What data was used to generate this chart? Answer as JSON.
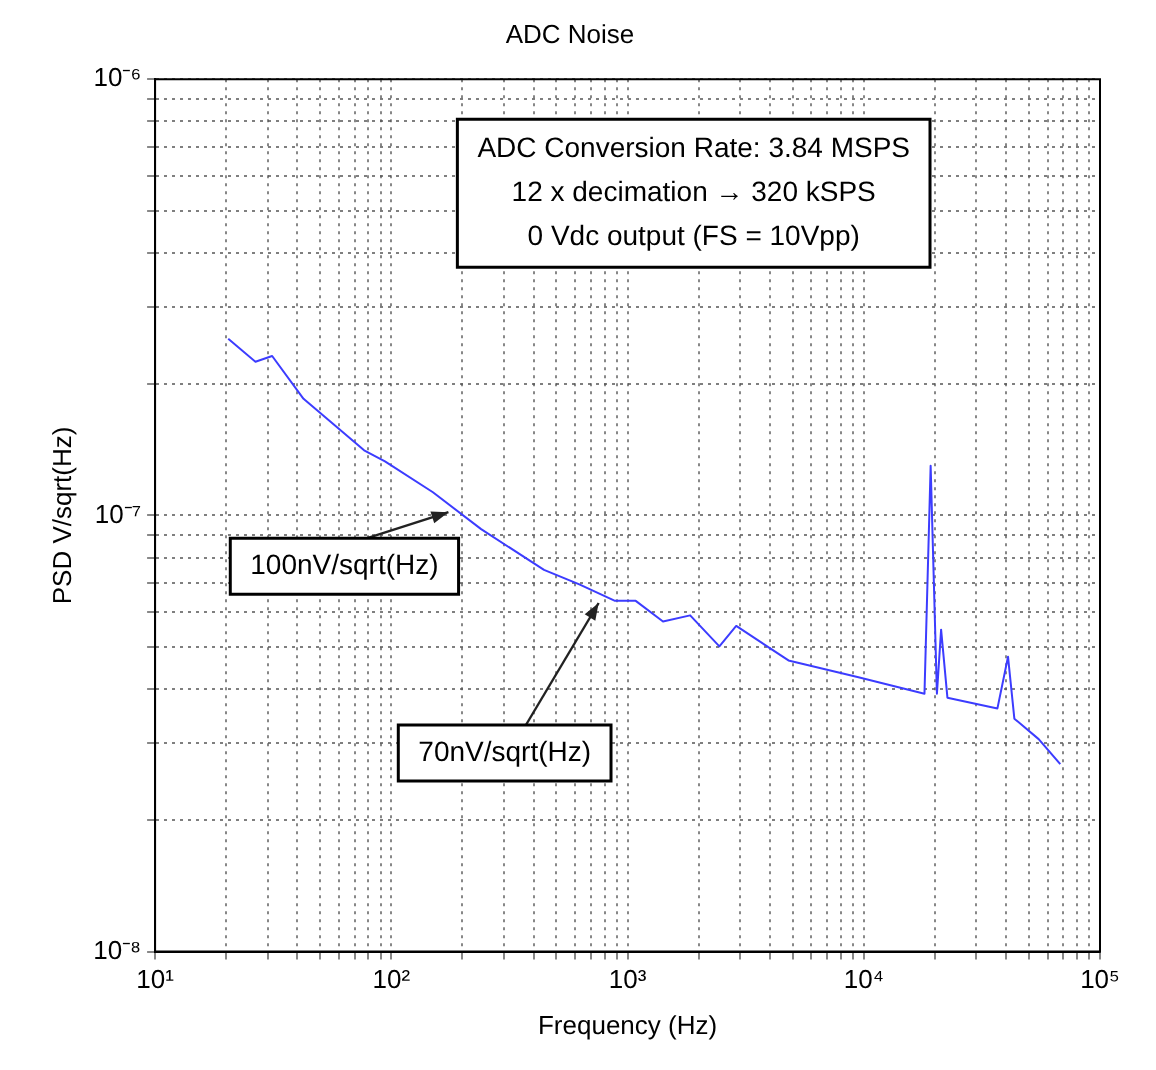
{
  "chart_data": {
    "type": "line",
    "title": "ADC Noise",
    "xlabel": "Frequency (Hz)",
    "ylabel": "PSD V/sqrt(Hz)",
    "log": "xy",
    "grid": true,
    "legend": false,
    "marker": "none",
    "line_style": "solid",
    "xlim": [
      10,
      100000
    ],
    "ylim": [
      1e-08,
      1e-06
    ],
    "xticks": [
      {
        "value": 10,
        "label": "10¹"
      },
      {
        "value": 20,
        "label": null
      },
      {
        "value": 30,
        "label": null
      },
      {
        "value": 40,
        "label": null
      },
      {
        "value": 50,
        "label": null
      },
      {
        "value": 60,
        "label": null
      },
      {
        "value": 70,
        "label": null
      },
      {
        "value": 80,
        "label": null
      },
      {
        "value": 90,
        "label": null
      },
      {
        "value": 100,
        "label": "10²"
      },
      {
        "value": 200,
        "label": null
      },
      {
        "value": 300,
        "label": null
      },
      {
        "value": 400,
        "label": null
      },
      {
        "value": 500,
        "label": null
      },
      {
        "value": 600,
        "label": null
      },
      {
        "value": 700,
        "label": null
      },
      {
        "value": 800,
        "label": null
      },
      {
        "value": 900,
        "label": null
      },
      {
        "value": 1000,
        "label": "10³"
      },
      {
        "value": 2000,
        "label": null
      },
      {
        "value": 3000,
        "label": null
      },
      {
        "value": 4000,
        "label": null
      },
      {
        "value": 5000,
        "label": null
      },
      {
        "value": 6000,
        "label": null
      },
      {
        "value": 7000,
        "label": null
      },
      {
        "value": 8000,
        "label": null
      },
      {
        "value": 9000,
        "label": null
      },
      {
        "value": 10000,
        "label": "10⁴"
      },
      {
        "value": 20000,
        "label": null
      },
      {
        "value": 30000,
        "label": null
      },
      {
        "value": 40000,
        "label": null
      },
      {
        "value": 50000,
        "label": null
      },
      {
        "value": 60000,
        "label": null
      },
      {
        "value": 70000,
        "label": null
      },
      {
        "value": 80000,
        "label": null
      },
      {
        "value": 90000,
        "label": null
      },
      {
        "value": 100000,
        "label": "10⁵"
      }
    ],
    "yticks": [
      {
        "value": 1e-08,
        "label": "10⁻⁸"
      },
      {
        "value": 2e-08,
        "label": null
      },
      {
        "value": 3e-08,
        "label": null
      },
      {
        "value": 4e-08,
        "label": null
      },
      {
        "value": 5e-08,
        "label": null
      },
      {
        "value": 6e-08,
        "label": null
      },
      {
        "value": 7e-08,
        "label": null
      },
      {
        "value": 8e-08,
        "label": null
      },
      {
        "value": 9e-08,
        "label": null
      },
      {
        "value": 1e-07,
        "label": "10⁻⁷"
      },
      {
        "value": 2e-07,
        "label": null
      },
      {
        "value": 3e-07,
        "label": null
      },
      {
        "value": 4e-07,
        "label": null
      },
      {
        "value": 5e-07,
        "label": null
      },
      {
        "value": 6e-07,
        "label": null
      },
      {
        "value": 7e-07,
        "label": null
      },
      {
        "value": 8e-07,
        "label": null
      },
      {
        "value": 9e-07,
        "label": null
      },
      {
        "value": 1e-06,
        "label": "10⁻⁶"
      }
    ],
    "series": [
      {
        "color": "#3c3cff",
        "x": [
          20.4,
          26.6,
          31.3,
          42.5,
          76.7,
          94,
          150,
          240,
          443,
          625,
          885,
          1083,
          1413,
          1841,
          2448,
          2884,
          4800,
          9400,
          18070,
          19190,
          20400,
          21250,
          22600,
          36800,
          40800,
          43400,
          55000,
          67900
        ],
        "values": [
          2.54e-07,
          2.25e-07,
          2.32e-07,
          1.85e-07,
          1.41e-07,
          1.33e-07,
          1.13e-07,
          9.3e-08,
          7.5e-08,
          6.95e-08,
          6.37e-08,
          6.37e-08,
          5.71e-08,
          5.9e-08,
          5.01e-08,
          5.58e-08,
          4.65e-08,
          4.26e-08,
          3.9e-08,
          1.3e-07,
          3.9e-08,
          5.47e-08,
          3.82e-08,
          3.61e-08,
          4.74e-08,
          3.42e-08,
          3.07e-08,
          2.69e-08
        ]
      }
    ],
    "annotations": [
      "ADC Conversion Rate: 3.84 MSPS\n12 x decimation → 320 kSPS\n0 Vdc output (FS = 10Vpp)",
      {
        "text": "100nV/sqrt(Hz)",
        "x": 185,
        "y": 1.05e-07
      },
      {
        "text": "70nV/sqrt(Hz)",
        "x": 800,
        "y": 6.5e-08
      }
    ]
  }
}
